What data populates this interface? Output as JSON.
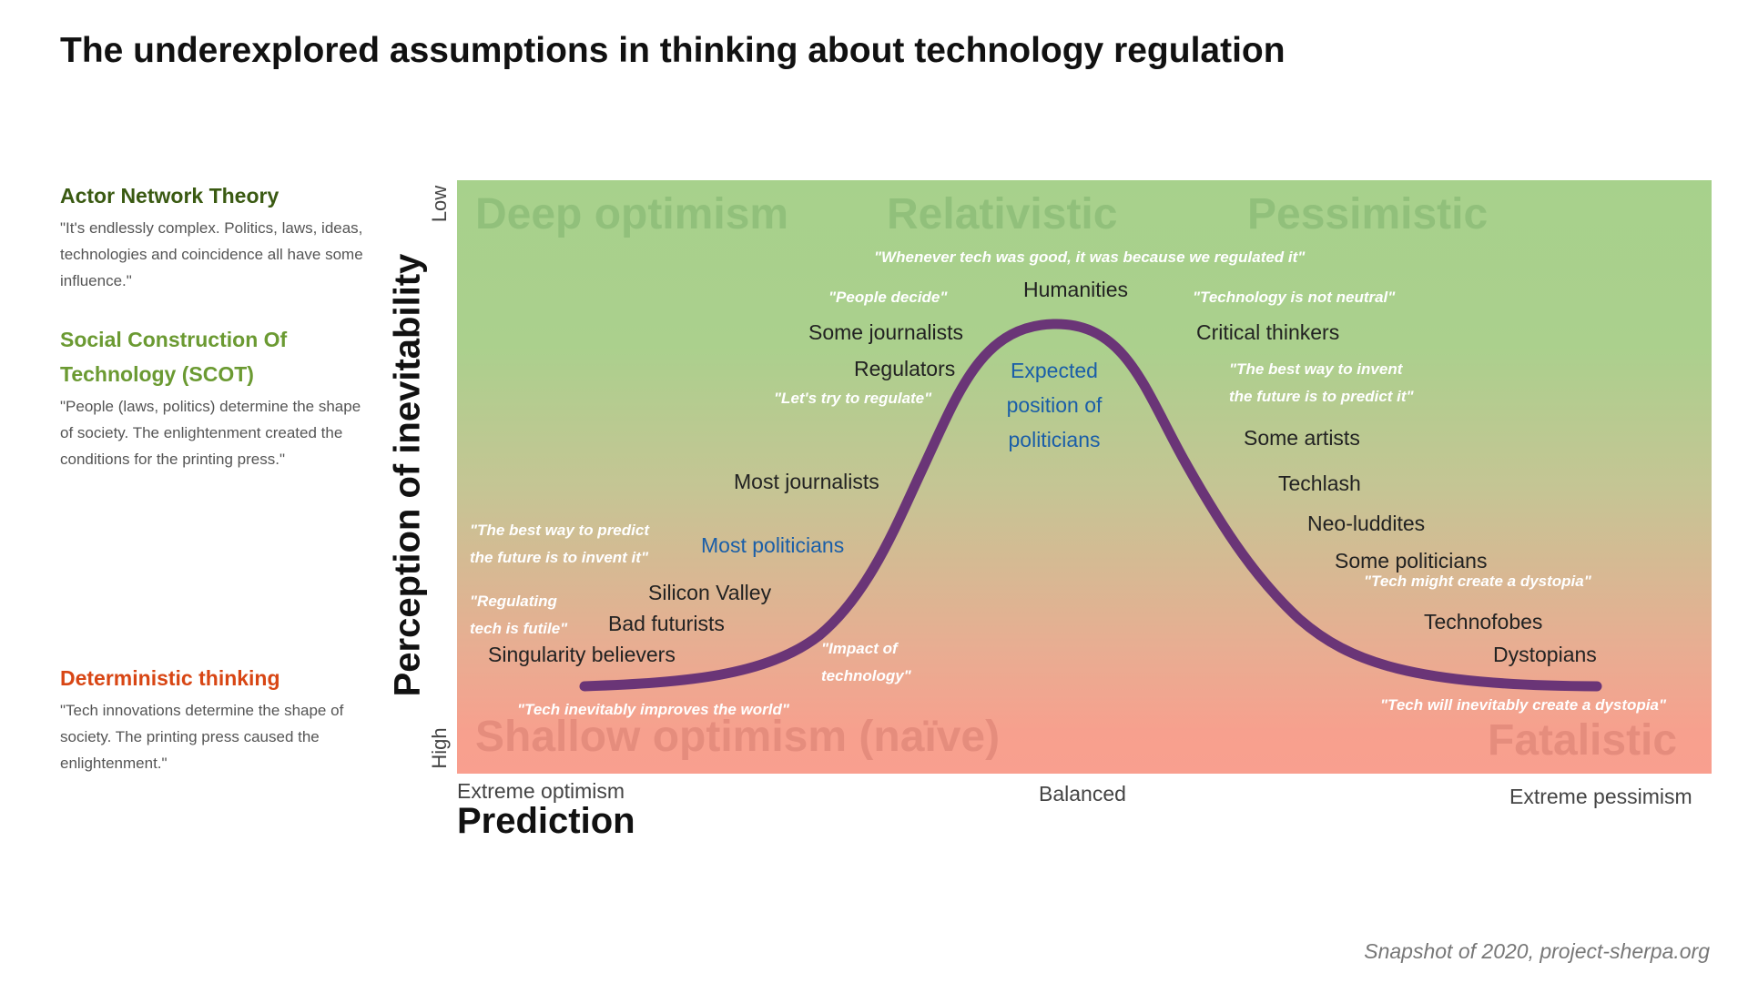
{
  "title": "The underexplored assumptions in thinking about technology regulation",
  "theories": {
    "ant": {
      "name": "Actor Network Theory",
      "desc": "\"It's endlessly complex. Politics, laws, ideas, technologies and coincidence all have some influence.\"",
      "color": "#3a5a12"
    },
    "scot": {
      "name": "Social Construction Of Technology (SCOT)",
      "desc": "\"People (laws, politics) determine the shape of society. The enlightenment created the conditions for the printing press.\"",
      "color": "#6b9a32"
    },
    "det": {
      "name": "Deterministic thinking",
      "desc": "\"Tech innovations determine the shape of society. The printing press caused the enlightenment.\"",
      "color": "#d84614"
    }
  },
  "y_axis": {
    "label": "Perception of inevitability",
    "low": "Low",
    "high": "High"
  },
  "x_axis": {
    "label": "Prediction",
    "left": "Extreme optimism",
    "middle": "Balanced",
    "right": "Extreme pessimism"
  },
  "zones": {
    "top_left": "Deep optimism",
    "top_middle": "Relativistic",
    "top_right": "Pessimistic",
    "bottom_left": "Shallow optimism (naïve)",
    "bottom_right": "Fatalistic"
  },
  "labels": {
    "humanities": "Humanities",
    "some_journalists": "Some journalists",
    "regulators": "Regulators",
    "critical_thinkers": "Critical thinkers",
    "some_artists": "Some artists",
    "most_journalists": "Most journalists",
    "techlash": "Techlash",
    "neo_luddites": "Neo-luddites",
    "some_politicians": "Some politicians",
    "most_politicians": "Most politicians",
    "silicon_valley": "Silicon Valley",
    "bad_futurists": "Bad futurists",
    "singularity_believers": "Singularity believers",
    "technofobes": "Technofobes",
    "dystopians": "Dystopians",
    "expected_1": "Expected",
    "expected_2": "position of",
    "expected_3": "politicians"
  },
  "quotes": {
    "regulated": "\"Whenever tech was good, it was because we regulated it\"",
    "people_decide": "\"People decide\"",
    "not_neutral": "\"Technology is not neutral\"",
    "invent_predict_1": "\"The best way to invent",
    "invent_predict_2": "the future is to predict it\"",
    "try_regulate": "\"Let's try to regulate\"",
    "predict_invent_1": "\"The best way to predict",
    "predict_invent_2": "the future is to invent it\"",
    "futile_1": "\"Regulating",
    "futile_2": "tech is futile\"",
    "impact_1": "\"Impact of",
    "impact_2": "technology\"",
    "improves": "\"Tech inevitably improves the world\"",
    "might_dystopia": "\"Tech might create a dystopia\"",
    "will_dystopia": "\"Tech will inevitably create a dystopia\""
  },
  "curve_color": "#6a3577",
  "footer": "Snapshot of 2020, project-sherpa.org"
}
